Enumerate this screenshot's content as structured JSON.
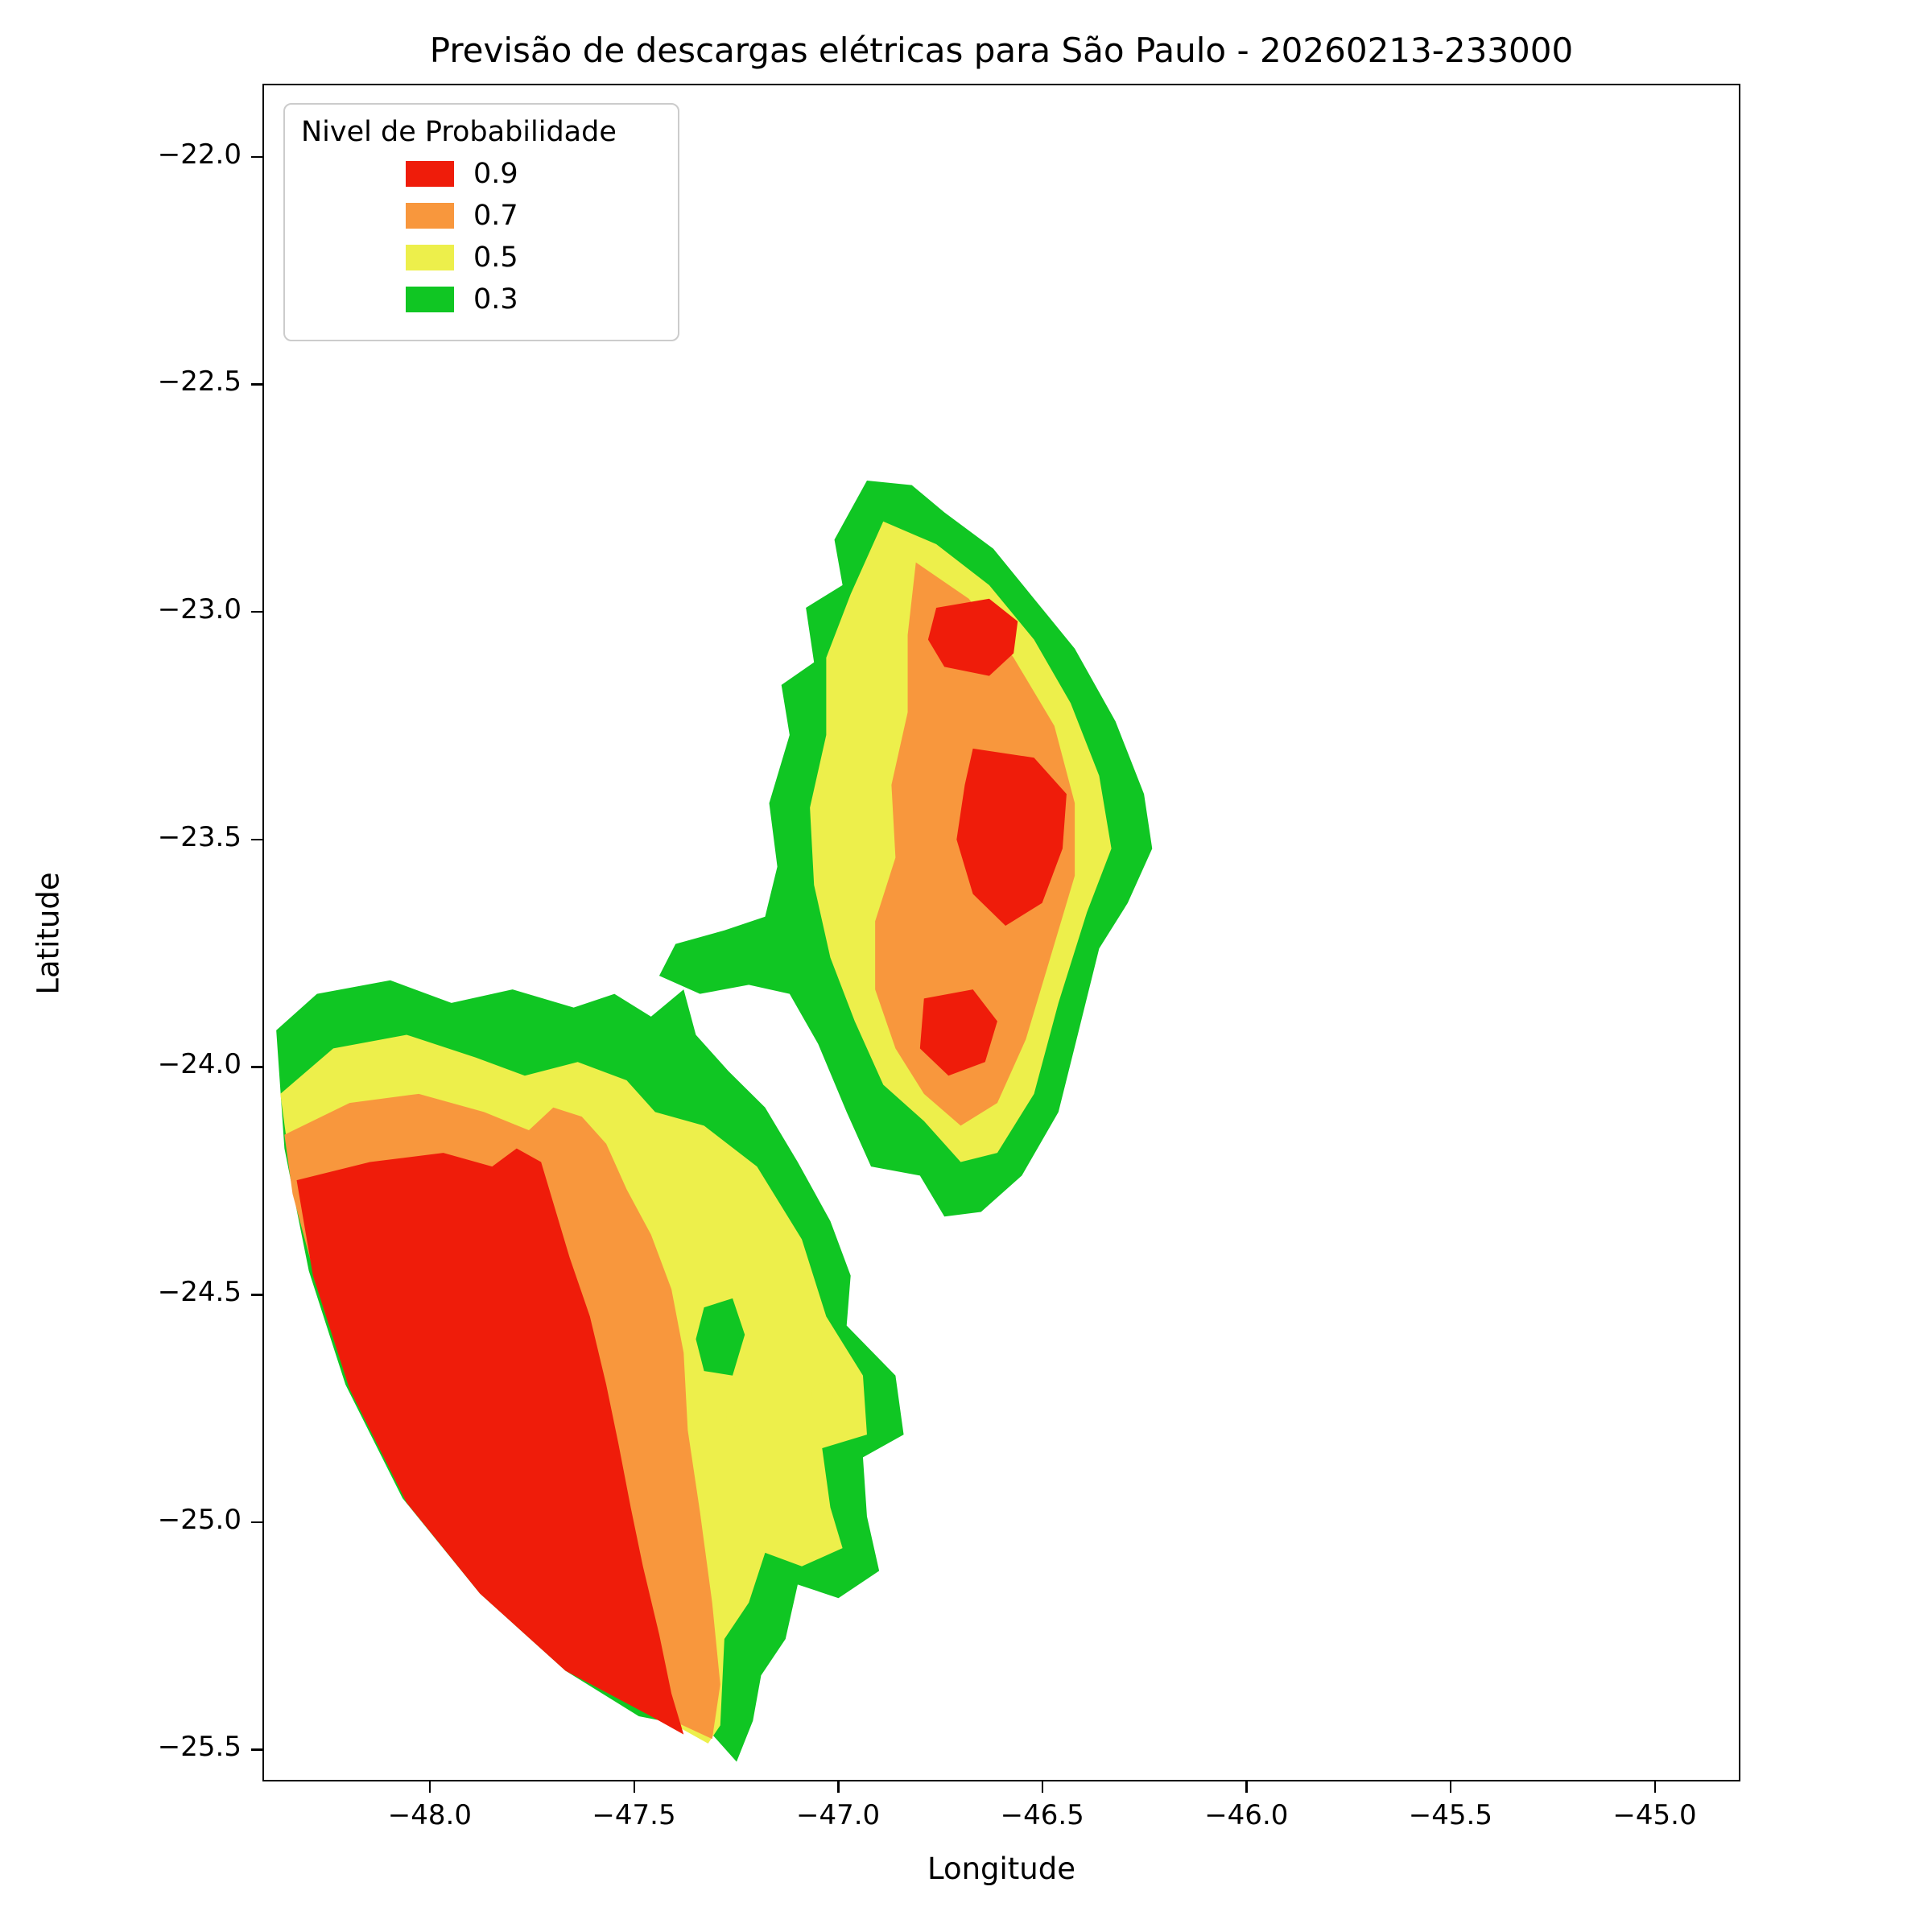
{
  "chart_data": {
    "type": "contour",
    "title": "Previsão de descargas elétricas para São Paulo - 20260213-233000",
    "xlabel": "Longitude",
    "ylabel": "Latitude",
    "xlim": [
      -48.41,
      -44.79
    ],
    "ylim": [
      -25.57,
      -21.84
    ],
    "grid": false,
    "legend_title": "Nivel de Probabilidade",
    "legend_position": "upper left",
    "xticks": [
      {
        "v": -48.0,
        "label": "−48.0"
      },
      {
        "v": -47.5,
        "label": "−47.5"
      },
      {
        "v": -47.0,
        "label": "−47.0"
      },
      {
        "v": -46.5,
        "label": "−46.5"
      },
      {
        "v": -46.0,
        "label": "−46.0"
      },
      {
        "v": -45.5,
        "label": "−45.5"
      },
      {
        "v": -45.0,
        "label": "−45.0"
      }
    ],
    "yticks": [
      {
        "v": -22.0,
        "label": "−22.0"
      },
      {
        "v": -22.5,
        "label": "−22.5"
      },
      {
        "v": -23.0,
        "label": "−23.0"
      },
      {
        "v": -23.5,
        "label": "−23.5"
      },
      {
        "v": -24.0,
        "label": "−24.0"
      },
      {
        "v": -24.5,
        "label": "−24.5"
      },
      {
        "v": -25.0,
        "label": "−25.0"
      },
      {
        "v": -25.5,
        "label": "−25.5"
      }
    ],
    "levels": [
      {
        "label": "0.9",
        "color": "#ef1c0a"
      },
      {
        "label": "0.7",
        "color": "#f8973d"
      },
      {
        "label": "0.5",
        "color": "#edef4b"
      },
      {
        "label": "0.3",
        "color": "#10c623"
      }
    ],
    "regions": [
      {
        "name": "ne-cell-p30",
        "level": "0.3",
        "points": [
          [
            -46.93,
            -22.71
          ],
          [
            -46.82,
            -22.72
          ],
          [
            -46.74,
            -22.78
          ],
          [
            -46.62,
            -22.86
          ],
          [
            -46.52,
            -22.97
          ],
          [
            -46.42,
            -23.08
          ],
          [
            -46.32,
            -23.24
          ],
          [
            -46.25,
            -23.4
          ],
          [
            -46.23,
            -23.52
          ],
          [
            -46.29,
            -23.64
          ],
          [
            -46.36,
            -23.74
          ],
          [
            -46.41,
            -23.92
          ],
          [
            -46.46,
            -24.1
          ],
          [
            -46.55,
            -24.24
          ],
          [
            -46.65,
            -24.32
          ],
          [
            -46.74,
            -24.33
          ],
          [
            -46.8,
            -24.24
          ],
          [
            -46.92,
            -24.22
          ],
          [
            -46.98,
            -24.1
          ],
          [
            -47.05,
            -23.95
          ],
          [
            -47.12,
            -23.84
          ],
          [
            -47.22,
            -23.82
          ],
          [
            -47.34,
            -23.84
          ],
          [
            -47.44,
            -23.8
          ],
          [
            -47.4,
            -23.73
          ],
          [
            -47.28,
            -23.7
          ],
          [
            -47.18,
            -23.67
          ],
          [
            -47.15,
            -23.56
          ],
          [
            -47.17,
            -23.42
          ],
          [
            -47.12,
            -23.27
          ],
          [
            -47.14,
            -23.16
          ],
          [
            -47.06,
            -23.11
          ],
          [
            -47.08,
            -22.99
          ],
          [
            -46.99,
            -22.94
          ],
          [
            -47.01,
            -22.84
          ]
        ]
      },
      {
        "name": "ne-cell-p50",
        "level": "0.5",
        "points": [
          [
            -46.89,
            -22.8
          ],
          [
            -46.76,
            -22.85
          ],
          [
            -46.63,
            -22.94
          ],
          [
            -46.52,
            -23.06
          ],
          [
            -46.43,
            -23.2
          ],
          [
            -46.36,
            -23.36
          ],
          [
            -46.33,
            -23.52
          ],
          [
            -46.39,
            -23.66
          ],
          [
            -46.46,
            -23.86
          ],
          [
            -46.52,
            -24.06
          ],
          [
            -46.61,
            -24.19
          ],
          [
            -46.7,
            -24.21
          ],
          [
            -46.79,
            -24.12
          ],
          [
            -46.89,
            -24.04
          ],
          [
            -46.96,
            -23.9
          ],
          [
            -47.02,
            -23.76
          ],
          [
            -47.06,
            -23.6
          ],
          [
            -47.07,
            -23.43
          ],
          [
            -47.03,
            -23.27
          ],
          [
            -47.03,
            -23.1
          ],
          [
            -46.97,
            -22.96
          ]
        ]
      },
      {
        "name": "ne-cell-p70",
        "level": "0.7",
        "points": [
          [
            -46.81,
            -22.89
          ],
          [
            -46.68,
            -22.97
          ],
          [
            -46.57,
            -23.1
          ],
          [
            -46.47,
            -23.25
          ],
          [
            -46.42,
            -23.42
          ],
          [
            -46.42,
            -23.58
          ],
          [
            -46.48,
            -23.76
          ],
          [
            -46.54,
            -23.94
          ],
          [
            -46.61,
            -24.08
          ],
          [
            -46.7,
            -24.13
          ],
          [
            -46.79,
            -24.06
          ],
          [
            -46.86,
            -23.96
          ],
          [
            -46.91,
            -23.83
          ],
          [
            -46.91,
            -23.68
          ],
          [
            -46.86,
            -23.54
          ],
          [
            -46.87,
            -23.38
          ],
          [
            -46.83,
            -23.22
          ],
          [
            -46.83,
            -23.05
          ]
        ]
      },
      {
        "name": "ne-cell-p90-north",
        "level": "0.9",
        "points": [
          [
            -46.76,
            -22.99
          ],
          [
            -46.63,
            -22.97
          ],
          [
            -46.56,
            -23.02
          ],
          [
            -46.57,
            -23.09
          ],
          [
            -46.63,
            -23.14
          ],
          [
            -46.74,
            -23.12
          ],
          [
            -46.78,
            -23.06
          ]
        ]
      },
      {
        "name": "ne-cell-p90-center",
        "level": "0.9",
        "points": [
          [
            -46.67,
            -23.3
          ],
          [
            -46.52,
            -23.32
          ],
          [
            -46.44,
            -23.4
          ],
          [
            -46.45,
            -23.52
          ],
          [
            -46.5,
            -23.64
          ],
          [
            -46.59,
            -23.69
          ],
          [
            -46.67,
            -23.62
          ],
          [
            -46.71,
            -23.5
          ],
          [
            -46.69,
            -23.38
          ]
        ]
      },
      {
        "name": "ne-cell-p90-south",
        "level": "0.9",
        "points": [
          [
            -46.79,
            -23.85
          ],
          [
            -46.67,
            -23.83
          ],
          [
            -46.61,
            -23.9
          ],
          [
            -46.64,
            -23.99
          ],
          [
            -46.73,
            -24.02
          ],
          [
            -46.8,
            -23.96
          ]
        ]
      },
      {
        "name": "sw-cell-p30",
        "level": "0.3",
        "points": [
          [
            -48.38,
            -23.92
          ],
          [
            -48.28,
            -23.84
          ],
          [
            -48.1,
            -23.81
          ],
          [
            -47.95,
            -23.86
          ],
          [
            -47.8,
            -23.83
          ],
          [
            -47.65,
            -23.87
          ],
          [
            -47.55,
            -23.84
          ],
          [
            -47.46,
            -23.89
          ],
          [
            -47.38,
            -23.83
          ],
          [
            -47.35,
            -23.93
          ],
          [
            -47.27,
            -24.01
          ],
          [
            -47.18,
            -24.09
          ],
          [
            -47.1,
            -24.21
          ],
          [
            -47.02,
            -24.34
          ],
          [
            -46.97,
            -24.46
          ],
          [
            -46.98,
            -24.57
          ],
          [
            -46.86,
            -24.68
          ],
          [
            -46.84,
            -24.81
          ],
          [
            -46.94,
            -24.86
          ],
          [
            -46.93,
            -24.99
          ],
          [
            -46.9,
            -25.11
          ],
          [
            -47.0,
            -25.17
          ],
          [
            -47.1,
            -25.14
          ],
          [
            -47.13,
            -25.26
          ],
          [
            -47.19,
            -25.34
          ],
          [
            -47.21,
            -25.44
          ],
          [
            -47.25,
            -25.53
          ],
          [
            -47.32,
            -25.46
          ],
          [
            -47.49,
            -25.43
          ],
          [
            -47.67,
            -25.33
          ],
          [
            -47.88,
            -25.16
          ],
          [
            -48.07,
            -24.95
          ],
          [
            -48.21,
            -24.7
          ],
          [
            -48.3,
            -24.45
          ],
          [
            -48.36,
            -24.18
          ]
        ]
      },
      {
        "name": "sw-cell-p50",
        "level": "0.5",
        "points": [
          [
            -48.37,
            -24.06
          ],
          [
            -48.24,
            -23.96
          ],
          [
            -48.06,
            -23.93
          ],
          [
            -47.89,
            -23.98
          ],
          [
            -47.77,
            -24.02
          ],
          [
            -47.64,
            -23.99
          ],
          [
            -47.52,
            -24.03
          ],
          [
            -47.45,
            -24.1
          ],
          [
            -47.33,
            -24.13
          ],
          [
            -47.2,
            -24.22
          ],
          [
            -47.09,
            -24.38
          ],
          [
            -47.03,
            -24.55
          ],
          [
            -46.94,
            -24.68
          ],
          [
            -46.93,
            -24.81
          ],
          [
            -47.04,
            -24.84
          ],
          [
            -47.02,
            -24.97
          ],
          [
            -46.99,
            -25.06
          ],
          [
            -47.09,
            -25.1
          ],
          [
            -47.18,
            -25.07
          ],
          [
            -47.22,
            -25.18
          ],
          [
            -47.28,
            -25.26
          ],
          [
            -47.29,
            -25.45
          ],
          [
            -47.32,
            -25.49
          ],
          [
            -47.42,
            -25.44
          ],
          [
            -47.62,
            -25.34
          ],
          [
            -47.82,
            -25.19
          ],
          [
            -48.01,
            -24.99
          ],
          [
            -48.16,
            -24.76
          ],
          [
            -48.27,
            -24.5
          ],
          [
            -48.34,
            -24.26
          ]
        ]
      },
      {
        "name": "sw-cell-p70",
        "level": "0.7",
        "points": [
          [
            -48.36,
            -24.15
          ],
          [
            -48.2,
            -24.08
          ],
          [
            -48.03,
            -24.06
          ],
          [
            -47.87,
            -24.1
          ],
          [
            -47.76,
            -24.14
          ],
          [
            -47.7,
            -24.09
          ],
          [
            -47.63,
            -24.11
          ],
          [
            -47.57,
            -24.17
          ],
          [
            -47.52,
            -24.27
          ],
          [
            -47.46,
            -24.37
          ],
          [
            -47.41,
            -24.49
          ],
          [
            -47.38,
            -24.63
          ],
          [
            -47.37,
            -24.8
          ],
          [
            -47.34,
            -24.98
          ],
          [
            -47.31,
            -25.18
          ],
          [
            -47.29,
            -25.36
          ],
          [
            -47.31,
            -25.48
          ],
          [
            -47.43,
            -25.43
          ],
          [
            -47.63,
            -25.33
          ],
          [
            -47.83,
            -25.18
          ],
          [
            -48.02,
            -24.98
          ],
          [
            -48.17,
            -24.74
          ],
          [
            -48.28,
            -24.48
          ],
          [
            -48.34,
            -24.28
          ]
        ]
      },
      {
        "name": "sw-cell-p30-inner",
        "level": "0.3",
        "points": [
          [
            -47.33,
            -24.53
          ],
          [
            -47.26,
            -24.51
          ],
          [
            -47.23,
            -24.59
          ],
          [
            -47.26,
            -24.68
          ],
          [
            -47.33,
            -24.67
          ],
          [
            -47.35,
            -24.6
          ]
        ]
      },
      {
        "name": "sw-cell-p90",
        "level": "0.9",
        "points": [
          [
            -48.33,
            -24.25
          ],
          [
            -48.15,
            -24.21
          ],
          [
            -47.97,
            -24.19
          ],
          [
            -47.85,
            -24.22
          ],
          [
            -47.79,
            -24.18
          ],
          [
            -47.73,
            -24.21
          ],
          [
            -47.7,
            -24.3
          ],
          [
            -47.66,
            -24.42
          ],
          [
            -47.61,
            -24.55
          ],
          [
            -47.57,
            -24.7
          ],
          [
            -47.54,
            -24.83
          ],
          [
            -47.51,
            -24.97
          ],
          [
            -47.48,
            -25.1
          ],
          [
            -47.44,
            -25.25
          ],
          [
            -47.41,
            -25.38
          ],
          [
            -47.38,
            -25.47
          ],
          [
            -47.46,
            -25.43
          ],
          [
            -47.67,
            -25.33
          ],
          [
            -47.88,
            -25.16
          ],
          [
            -48.06,
            -24.96
          ],
          [
            -48.2,
            -24.71
          ],
          [
            -48.29,
            -24.46
          ]
        ]
      }
    ],
    "spots": [
      {
        "name": "spot-p50-a",
        "level": "0.5",
        "center": [
          -47.25,
          -24.77
        ],
        "r": 13
      },
      {
        "name": "spot-p50-b",
        "level": "0.5",
        "center": [
          -47.04,
          -24.72
        ],
        "r": 13
      }
    ]
  }
}
